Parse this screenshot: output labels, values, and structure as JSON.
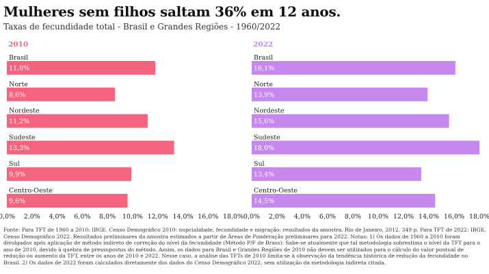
{
  "title": "Mulheres sem filhos saltam 36% em 12 anos.",
  "subtitle": "Taxas de fecundidade total - Brasil e Grandes Regiões - 1960/2022",
  "note": "Fonte: Para TFT de 1960 a 2010: IBGE. Censo Demográfico 2010: nupcialidade, fecundidade e migração: resultados da amostra. Rio de Janeiro, 2012. 349 p. Para TFT de 2022: IBGE, Censo Demográfico 2022. Resultados preliminares da amostra estimados a partir de Áreas de Ponderação preliminares para 2022. Notas: 1) Os dados de 1960 a 2010 foram divulgados após aplicação de método indireto de correção do nível da fecundidade (Método P/F de Brass). Sabe-se atualmente que tal metodologia sobrestima o nível da TFT para o ano de 2010, devido à quebra de pressupostos do método. Assim, os dados para Brasil e Grandes Regiões de 2010 não devem ser utilizados para o cálculo do valor pontual de redução ou aumento da TFT, entre os anos de 2010 e 2022. Nesse caso, a análise das TFTs de 2010 limita-se à observação da tendência histórica de redução da fecundidade no Brasil. 2) Os dados de 2022 foram calculados diretamente dos dados do Censo Demográfico 2022, sem utilização da metodologia indireta citada.",
  "chart_data": [
    {
      "type": "bar",
      "orientation": "horizontal",
      "title": "2010",
      "color": "#f5647e",
      "categories": [
        "Brasil",
        "Norte",
        "Nordeste",
        "Sudeste",
        "Sul",
        "Centro-Oeste"
      ],
      "values": [
        11.8,
        8.6,
        11.2,
        13.3,
        9.9,
        9.6
      ],
      "value_labels": [
        "11,8%",
        "8,6%",
        "11,2%",
        "13,3%",
        "9,9%",
        "9,6%"
      ],
      "xlim": [
        0,
        18
      ],
      "xticks": [
        0,
        2,
        4,
        6,
        8,
        10,
        12,
        14,
        16,
        18
      ],
      "xtick_labels": [
        "0,0%",
        "2,0%",
        "4,0%",
        "6,0%",
        "8,0%",
        "10,0%",
        "12,0%",
        "14,0%",
        "16,0%",
        "18,0%"
      ]
    },
    {
      "type": "bar",
      "orientation": "horizontal",
      "title": "2022",
      "color": "#c688ec",
      "categories": [
        "Brasil",
        "Norte",
        "Nordeste",
        "Sudeste",
        "Sul",
        "Centro-Oeste"
      ],
      "values": [
        16.1,
        13.9,
        15.6,
        18.0,
        13.4,
        14.5
      ],
      "value_labels": [
        "16,1%",
        "13,9%",
        "15,6%",
        "18,0%",
        "13,4%",
        "14,5%"
      ],
      "xlim": [
        0,
        18
      ],
      "xticks": [
        0,
        2,
        4,
        6,
        8,
        10,
        12,
        14,
        16,
        18
      ],
      "xtick_labels": [
        "0,0%",
        "2,0%",
        "4,0%",
        "6,0%",
        "8,0%",
        "10,0%",
        "12,0%",
        "14,0%",
        "16,0%",
        "18,0%"
      ]
    }
  ]
}
